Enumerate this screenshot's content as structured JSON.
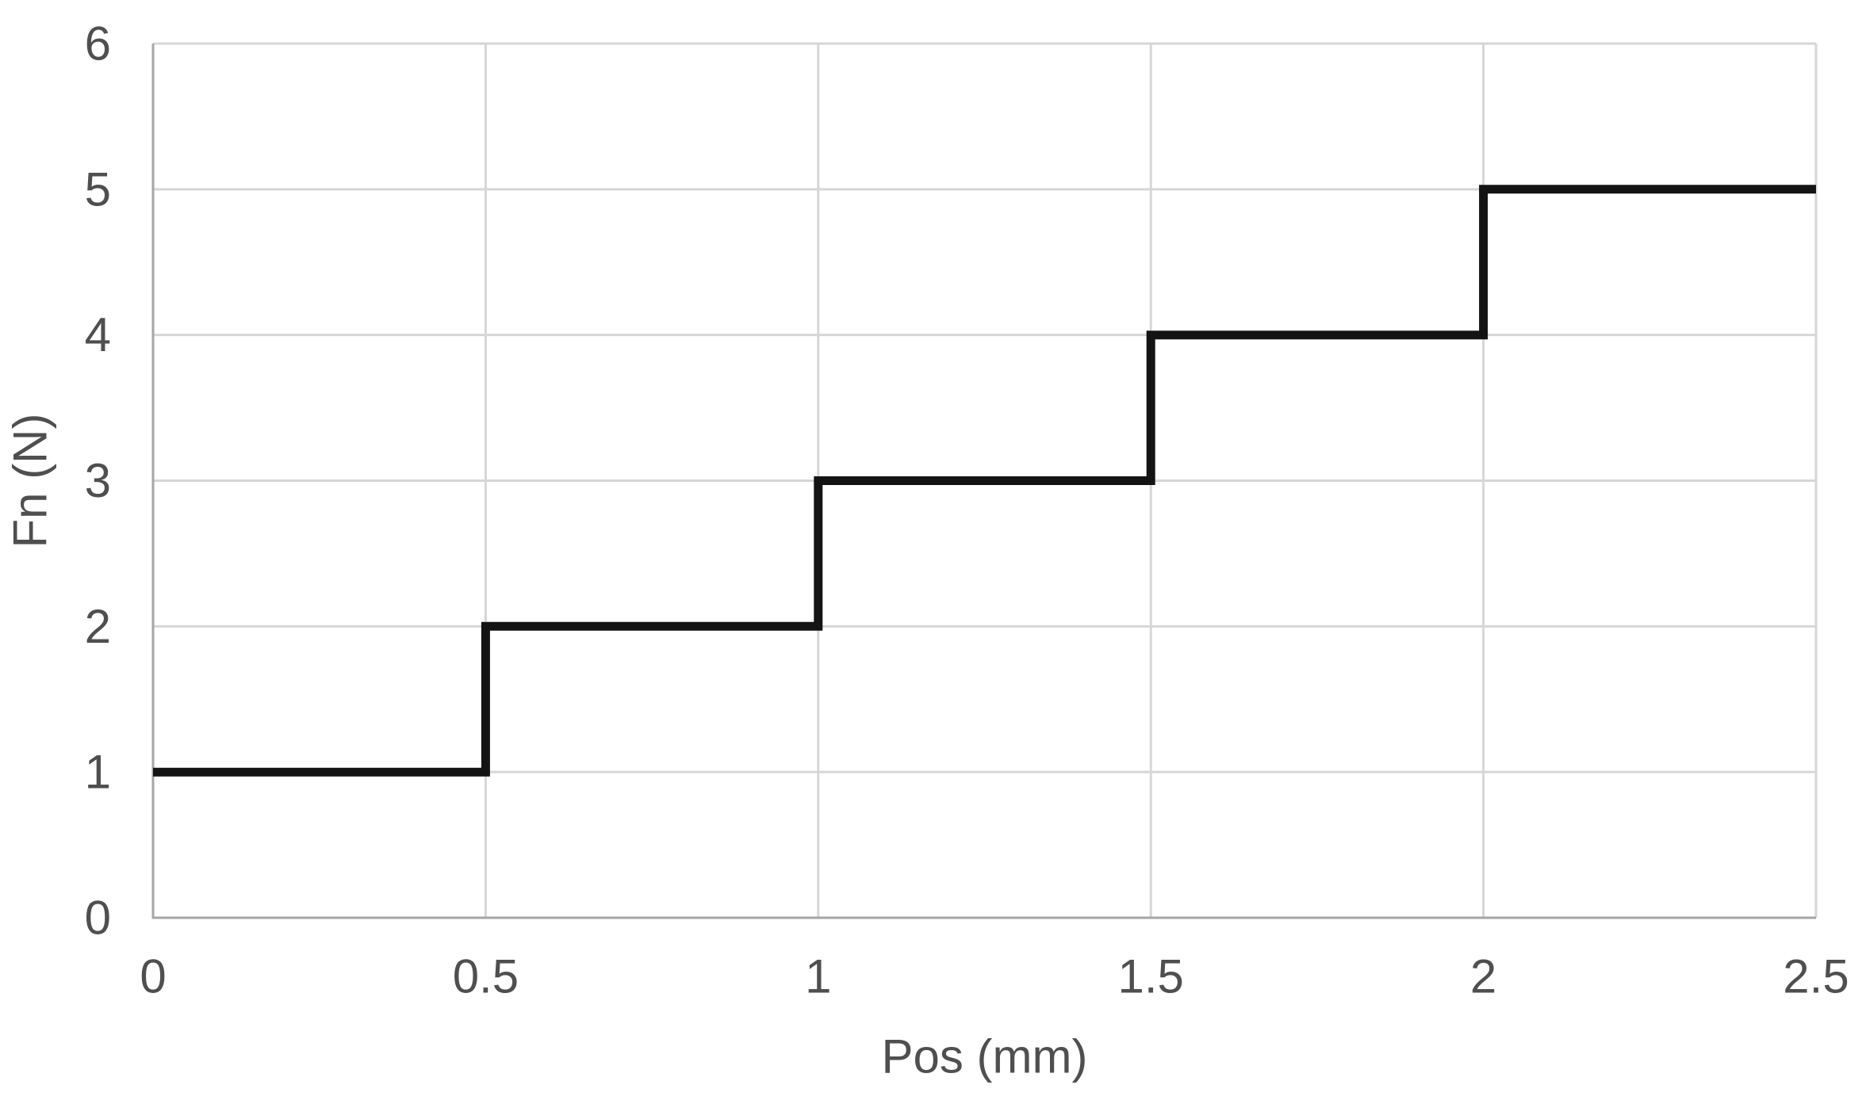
{
  "chart_data": {
    "type": "line",
    "subtype": "step",
    "title": "",
    "xlabel": "Pos (mm)",
    "ylabel": "Fn (N)",
    "xlim": [
      0,
      2.5
    ],
    "ylim": [
      0,
      6
    ],
    "grid": true,
    "legend": "none",
    "x_ticks": {
      "values": [
        0,
        0.5,
        1,
        1.5,
        2,
        2.5
      ],
      "labels": [
        "0",
        "0.5",
        "1",
        "1.5",
        "2",
        "2.5"
      ]
    },
    "y_ticks": {
      "values": [
        0,
        1,
        2,
        3,
        4,
        5,
        6
      ],
      "labels": [
        "0",
        "1",
        "2",
        "3",
        "4",
        "5",
        "6"
      ]
    },
    "series": [
      {
        "name": "Fn",
        "points": [
          [
            0,
            1
          ],
          [
            0.5,
            1
          ],
          [
            0.5,
            2
          ],
          [
            1,
            2
          ],
          [
            1,
            3
          ],
          [
            1.5,
            3
          ],
          [
            1.5,
            4
          ],
          [
            2,
            4
          ],
          [
            2,
            5
          ],
          [
            2.5,
            5
          ]
        ]
      }
    ],
    "colors": {
      "series_line": "#141414",
      "gridline": "#d6d6d6",
      "axis_line": "#a6a6a6",
      "label_text": "#4f4f4f",
      "background": "#ffffff"
    }
  }
}
